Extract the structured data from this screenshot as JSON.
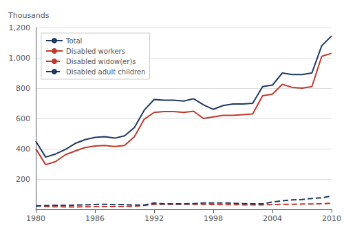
{
  "chart_data": {
    "type": "line",
    "y_label": "Thousands",
    "x": [
      1980,
      1981,
      1982,
      1983,
      1984,
      1985,
      1986,
      1987,
      1988,
      1989,
      1990,
      1991,
      1992,
      1993,
      1994,
      1995,
      1996,
      1997,
      1998,
      1999,
      2000,
      2001,
      2002,
      2003,
      2004,
      2005,
      2006,
      2007,
      2008,
      2009,
      2010
    ],
    "series": [
      {
        "name": "Total",
        "color": "#1f3864",
        "line_style": "solid",
        "marker": "none",
        "values": [
          450,
          345,
          365,
          395,
          435,
          460,
          475,
          480,
          470,
          485,
          540,
          655,
          725,
          720,
          720,
          715,
          730,
          690,
          660,
          685,
          695,
          695,
          700,
          810,
          820,
          900,
          890,
          890,
          900,
          1080,
          1145
        ]
      },
      {
        "name": "Disabled workers",
        "color": "#c0392b",
        "line_style": "solid",
        "marker": "none",
        "values": [
          400,
          295,
          315,
          360,
          385,
          408,
          418,
          422,
          415,
          422,
          480,
          595,
          640,
          645,
          645,
          640,
          648,
          600,
          610,
          620,
          620,
          625,
          630,
          750,
          760,
          825,
          805,
          800,
          810,
          1010,
          1030
        ]
      },
      {
        "name": "Disabled widow(er)s",
        "color": "#c0392b",
        "line_style": "dashed",
        "marker": "none",
        "values": [
          25,
          18,
          17,
          16,
          16,
          17,
          18,
          18,
          18,
          19,
          20,
          26,
          33,
          33,
          33,
          33,
          33,
          33,
          32,
          31,
          31,
          30,
          30,
          30,
          32,
          33,
          33,
          35,
          35,
          37,
          40
        ]
      },
      {
        "name": "Disabled adult children",
        "color": "#1f3864",
        "line_style": "dashed",
        "marker": "none",
        "values": [
          20,
          25,
          26,
          26,
          28,
          30,
          32,
          33,
          31,
          32,
          28,
          28,
          42,
          36,
          36,
          36,
          38,
          42,
          42,
          42,
          40,
          38,
          36,
          36,
          48,
          57,
          62,
          65,
          72,
          76,
          88
        ]
      }
    ],
    "xlim": [
      1980,
      2010
    ],
    "xticks": [
      1980,
      1986,
      1992,
      1998,
      2004,
      2010
    ],
    "ylim": [
      0,
      1200
    ],
    "yticks": [
      200,
      400,
      600,
      800,
      {
        "value": 1000,
        "label": "1,000"
      },
      {
        "value": 1200,
        "label": "1,200"
      }
    ],
    "grid": true,
    "legend": "upper left"
  }
}
